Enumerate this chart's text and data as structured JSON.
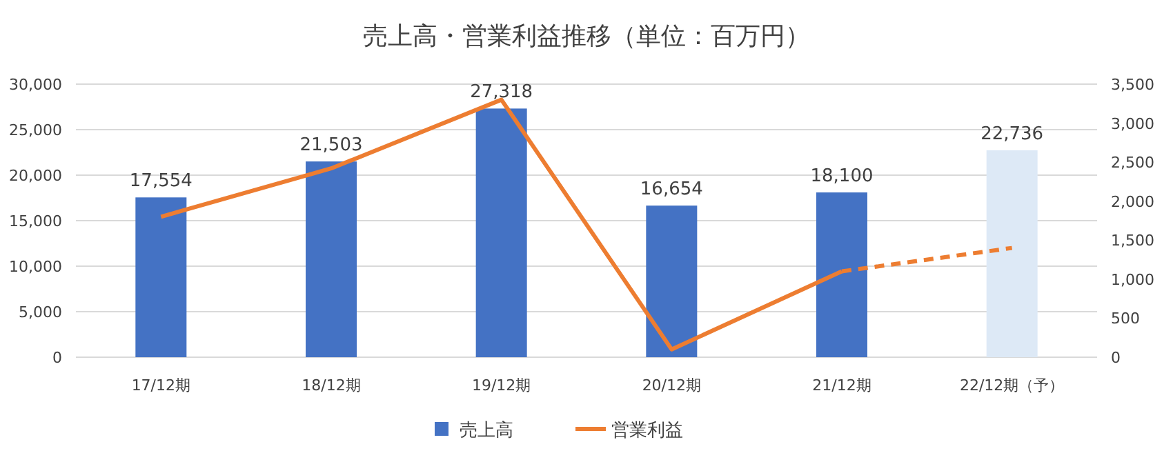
{
  "chart_data": {
    "type": "bar",
    "title": "売上高・営業利益推移（単位：百万円）",
    "categories": [
      "17/12期",
      "18/12期",
      "19/12期",
      "20/12期",
      "21/12期",
      "22/12期（予）"
    ],
    "series": [
      {
        "name": "売上高",
        "color": "#4472c4",
        "colors": [
          "#4472c4",
          "#4472c4",
          "#4472c4",
          "#4472c4",
          "#4472c4",
          "#dde9f6"
        ],
        "values": [
          17554,
          21503,
          27318,
          16654,
          18100,
          22736
        ],
        "value_labels": [
          "17,554",
          "21,503",
          "27,318",
          "16,654",
          "18,100",
          "22,736"
        ]
      },
      {
        "name": "営業利益",
        "type": "line",
        "axis": "y2",
        "color": "#ed7d31",
        "line_style": "solid",
        "values": [
          1800,
          2420,
          3300,
          100,
          1100,
          null
        ]
      },
      {
        "type": "line",
        "axis": "y2",
        "color": "#ed7d31",
        "line_style": "dashed",
        "values": [
          null,
          null,
          null,
          null,
          1100,
          1400
        ]
      }
    ],
    "ylim": [
      0,
      30000
    ],
    "yticks": [
      0,
      {
        "value": 5000,
        "label": "5,000"
      },
      {
        "value": 10000,
        "label": "10,000"
      },
      {
        "value": 15000,
        "label": "15,000"
      },
      {
        "value": 20000,
        "label": "20,000"
      },
      {
        "value": 25000,
        "label": "25,000"
      },
      {
        "value": 30000,
        "label": "30,000"
      }
    ],
    "y2lim": [
      0,
      3500
    ],
    "y2ticks": [
      0,
      500,
      {
        "value": 1000,
        "label": "1,000"
      },
      {
        "value": 1500,
        "label": "1,500"
      },
      {
        "value": 2000,
        "label": "2,000"
      },
      {
        "value": 2500,
        "label": "2,500"
      },
      {
        "value": 3000,
        "label": "3,000"
      },
      {
        "value": 3500,
        "label": "3,500"
      }
    ],
    "grid": "y",
    "legend": "bottom"
  }
}
